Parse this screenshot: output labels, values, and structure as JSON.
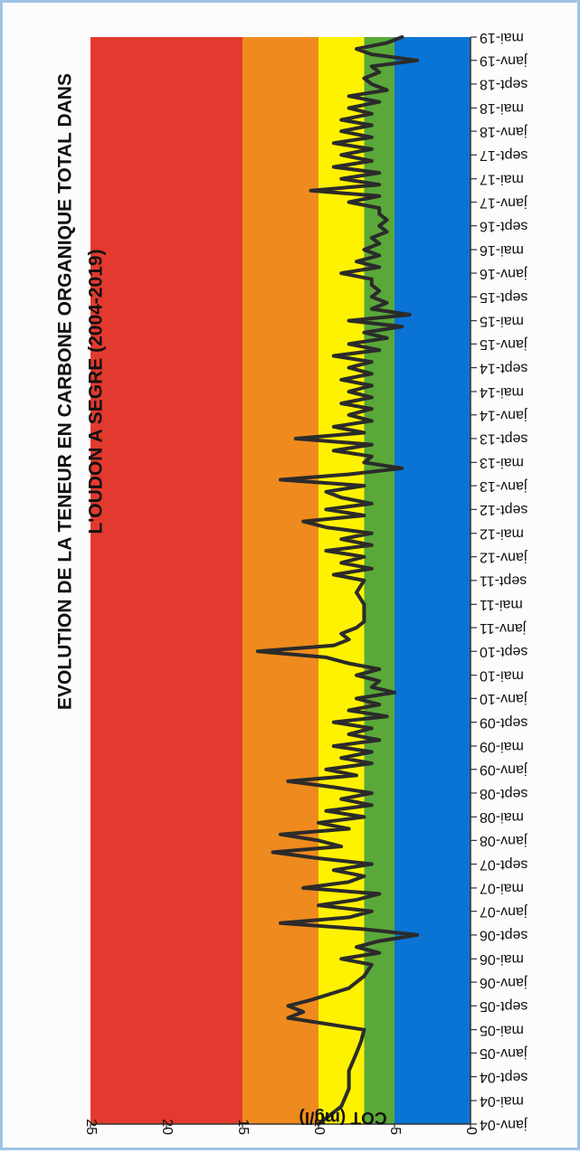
{
  "chart_data": {
    "type": "line",
    "title": "EVOLUTION DE LA TENEUR EN CARBONE ORGANIQUE TOTAL DANS L'OUDON A SEGRE (2004-2019)",
    "title_lines": [
      "EVOLUTION DE LA TENEUR EN CARBONE ORGANIQUE TOTAL DANS",
      "L'OUDON A SEGRE (2004-2019)"
    ],
    "xlabel": "",
    "ylabel": "COT (mg/l)",
    "ylim": [
      0,
      25
    ],
    "yticks": [
      0,
      5,
      10,
      15,
      20,
      25
    ],
    "orientation": "rotated-90-clockwise",
    "grid": false,
    "legend": "none",
    "xlim": [
      "2004-01-01",
      "2019-05-01"
    ],
    "xticks": [
      {
        "label": "janv-04",
        "date": "2004-01-01"
      },
      {
        "label": "mai-04",
        "date": "2004-05-01"
      },
      {
        "label": "sept-04",
        "date": "2004-09-01"
      },
      {
        "label": "janv-05",
        "date": "2005-01-01"
      },
      {
        "label": "mai-05",
        "date": "2005-05-01"
      },
      {
        "label": "sept-05",
        "date": "2005-09-01"
      },
      {
        "label": "janv-06",
        "date": "2006-01-01"
      },
      {
        "label": "mai-06",
        "date": "2006-05-01"
      },
      {
        "label": "sept-06",
        "date": "2006-09-01"
      },
      {
        "label": "janv-07",
        "date": "2007-01-01"
      },
      {
        "label": "mai-07",
        "date": "2007-05-01"
      },
      {
        "label": "sept-07",
        "date": "2007-09-01"
      },
      {
        "label": "janv-08",
        "date": "2008-01-01"
      },
      {
        "label": "mai-08",
        "date": "2008-05-01"
      },
      {
        "label": "sept-08",
        "date": "2008-09-01"
      },
      {
        "label": "janv-09",
        "date": "2009-01-01"
      },
      {
        "label": "mai-09",
        "date": "2009-05-01"
      },
      {
        "label": "sept-09",
        "date": "2009-09-01"
      },
      {
        "label": "janv-10",
        "date": "2010-01-01"
      },
      {
        "label": "mai-10",
        "date": "2010-05-01"
      },
      {
        "label": "sept-10",
        "date": "2010-09-01"
      },
      {
        "label": "janv-11",
        "date": "2011-01-01"
      },
      {
        "label": "mai-11",
        "date": "2011-05-01"
      },
      {
        "label": "sept-11",
        "date": "2011-09-01"
      },
      {
        "label": "janv-12",
        "date": "2012-01-01"
      },
      {
        "label": "mai-12",
        "date": "2012-05-01"
      },
      {
        "label": "sept-12",
        "date": "2012-09-01"
      },
      {
        "label": "janv-13",
        "date": "2013-01-01"
      },
      {
        "label": "mai-13",
        "date": "2013-05-01"
      },
      {
        "label": "sept-13",
        "date": "2013-09-01"
      },
      {
        "label": "janv-14",
        "date": "2014-01-01"
      },
      {
        "label": "mai-14",
        "date": "2014-05-01"
      },
      {
        "label": "sept-14",
        "date": "2014-09-01"
      },
      {
        "label": "janv-15",
        "date": "2015-01-01"
      },
      {
        "label": "mai-15",
        "date": "2015-05-01"
      },
      {
        "label": "sept-15",
        "date": "2015-09-01"
      },
      {
        "label": "janv-16",
        "date": "2016-01-01"
      },
      {
        "label": "mai-16",
        "date": "2016-05-01"
      },
      {
        "label": "sept-16",
        "date": "2016-09-01"
      },
      {
        "label": "janv-17",
        "date": "2017-01-01"
      },
      {
        "label": "mai-17",
        "date": "2017-05-01"
      },
      {
        "label": "sept-17",
        "date": "2017-09-01"
      },
      {
        "label": "janv-18",
        "date": "2018-01-01"
      },
      {
        "label": "mai-18",
        "date": "2018-05-01"
      },
      {
        "label": "sept-18",
        "date": "2018-09-01"
      },
      {
        "label": "janv-19",
        "date": "2019-01-01"
      },
      {
        "label": "mai-19",
        "date": "2019-05-01"
      }
    ],
    "bands": [
      {
        "from": 0,
        "to": 5,
        "color": "#0a74d4"
      },
      {
        "from": 5,
        "to": 7,
        "color": "#5aa839"
      },
      {
        "from": 7,
        "to": 10,
        "color": "#fff200"
      },
      {
        "from": 10,
        "to": 15,
        "color": "#ef8a1e"
      },
      {
        "from": 15,
        "to": 25,
        "color": "#e23a2e"
      }
    ],
    "line_color": "#2b2b2b",
    "series": [
      {
        "points": [
          [
            "2004-01-01",
            10.0
          ],
          [
            "2004-04-01",
            8.5
          ],
          [
            "2004-07-01",
            8.0
          ],
          [
            "2004-10-01",
            8.0
          ],
          [
            "2005-01-01",
            7.5
          ],
          [
            "2005-03-01",
            7.2
          ],
          [
            "2005-05-01",
            7.0
          ],
          [
            "2005-07-01",
            12.0
          ],
          [
            "2005-08-01",
            11.0
          ],
          [
            "2005-09-01",
            12.0
          ],
          [
            "2005-10-01",
            10.5
          ],
          [
            "2005-12-01",
            8.0
          ],
          [
            "2006-02-01",
            7.0
          ],
          [
            "2006-04-01",
            6.5
          ],
          [
            "2006-05-01",
            8.5
          ],
          [
            "2006-06-01",
            6.0
          ],
          [
            "2006-07-01",
            7.5
          ],
          [
            "2006-08-01",
            6.0
          ],
          [
            "2006-09-01",
            3.5
          ],
          [
            "2006-10-01",
            7.0
          ],
          [
            "2006-11-01",
            12.5
          ],
          [
            "2006-12-01",
            8.0
          ],
          [
            "2007-01-01",
            6.5
          ],
          [
            "2007-02-01",
            10.0
          ],
          [
            "2007-03-01",
            7.5
          ],
          [
            "2007-04-01",
            6.0
          ],
          [
            "2007-05-01",
            11.0
          ],
          [
            "2007-06-01",
            8.0
          ],
          [
            "2007-07-01",
            7.0
          ],
          [
            "2007-08-01",
            9.0
          ],
          [
            "2007-09-01",
            6.5
          ],
          [
            "2007-10-01",
            10.0
          ],
          [
            "2007-11-01",
            13.0
          ],
          [
            "2007-12-01",
            8.5
          ],
          [
            "2008-01-01",
            10.0
          ],
          [
            "2008-02-01",
            12.5
          ],
          [
            "2008-03-01",
            8.0
          ],
          [
            "2008-04-01",
            10.0
          ],
          [
            "2008-05-01",
            7.0
          ],
          [
            "2008-06-01",
            9.5
          ],
          [
            "2008-07-01",
            6.5
          ],
          [
            "2008-08-01",
            8.5
          ],
          [
            "2008-09-01",
            6.5
          ],
          [
            "2008-10-01",
            9.0
          ],
          [
            "2008-11-01",
            12.0
          ],
          [
            "2008-12-01",
            7.5
          ],
          [
            "2009-01-01",
            9.5
          ],
          [
            "2009-02-01",
            6.5
          ],
          [
            "2009-03-01",
            8.5
          ],
          [
            "2009-04-01",
            6.5
          ],
          [
            "2009-05-01",
            9.0
          ],
          [
            "2009-06-01",
            6.0
          ],
          [
            "2009-07-01",
            8.0
          ],
          [
            "2009-08-01",
            6.5
          ],
          [
            "2009-09-01",
            9.0
          ],
          [
            "2009-10-01",
            5.5
          ],
          [
            "2009-11-01",
            8.0
          ],
          [
            "2009-12-01",
            6.0
          ],
          [
            "2010-01-01",
            7.5
          ],
          [
            "2010-02-01",
            5.0
          ],
          [
            "2010-03-01",
            6.5
          ],
          [
            "2010-04-01",
            6.0
          ],
          [
            "2010-05-01",
            7.5
          ],
          [
            "2010-06-01",
            6.0
          ],
          [
            "2010-07-01",
            8.0
          ],
          [
            "2010-08-01",
            9.5
          ],
          [
            "2010-09-01",
            14.0
          ],
          [
            "2010-10-01",
            9.0
          ],
          [
            "2010-11-01",
            8.0
          ],
          [
            "2010-12-01",
            8.5
          ],
          [
            "2011-01-01",
            7.5
          ],
          [
            "2011-02-01",
            7.0
          ],
          [
            "2011-03-01",
            7.0
          ],
          [
            "2011-05-01",
            7.0
          ],
          [
            "2011-07-01",
            7.5
          ],
          [
            "2011-09-01",
            7.0
          ],
          [
            "2011-10-01",
            9.0
          ],
          [
            "2011-11-01",
            6.5
          ],
          [
            "2011-12-01",
            8.5
          ],
          [
            "2012-01-01",
            7.0
          ],
          [
            "2012-02-01",
            9.5
          ],
          [
            "2012-03-01",
            6.5
          ],
          [
            "2012-04-01",
            8.5
          ],
          [
            "2012-05-01",
            6.5
          ],
          [
            "2012-06-01",
            9.5
          ],
          [
            "2012-07-01",
            11.0
          ],
          [
            "2012-08-01",
            7.0
          ],
          [
            "2012-09-01",
            9.5
          ],
          [
            "2012-10-01",
            6.5
          ],
          [
            "2012-11-01",
            8.5
          ],
          [
            "2012-12-01",
            9.5
          ],
          [
            "2013-01-01",
            7.0
          ],
          [
            "2013-02-01",
            12.5
          ],
          [
            "2013-03-01",
            8.0
          ],
          [
            "2013-04-01",
            4.5
          ],
          [
            "2013-05-01",
            7.0
          ],
          [
            "2013-06-01",
            6.5
          ],
          [
            "2013-07-01",
            9.0
          ],
          [
            "2013-08-01",
            6.5
          ],
          [
            "2013-09-01",
            11.5
          ],
          [
            "2013-10-01",
            7.0
          ],
          [
            "2013-11-01",
            9.0
          ],
          [
            "2013-12-01",
            6.5
          ],
          [
            "2014-01-01",
            8.0
          ],
          [
            "2014-02-01",
            6.5
          ],
          [
            "2014-03-01",
            8.5
          ],
          [
            "2014-04-01",
            6.5
          ],
          [
            "2014-05-01",
            8.0
          ],
          [
            "2014-06-01",
            6.5
          ],
          [
            "2014-07-01",
            8.5
          ],
          [
            "2014-08-01",
            6.5
          ],
          [
            "2014-09-01",
            8.0
          ],
          [
            "2014-10-01",
            6.5
          ],
          [
            "2014-11-01",
            9.0
          ],
          [
            "2014-12-01",
            6.0
          ],
          [
            "2015-01-01",
            8.0
          ],
          [
            "2015-02-01",
            5.5
          ],
          [
            "2015-03-01",
            7.0
          ],
          [
            "2015-04-01",
            4.5
          ],
          [
            "2015-05-01",
            8.0
          ],
          [
            "2015-06-01",
            4.0
          ],
          [
            "2015-07-01",
            6.5
          ],
          [
            "2015-08-01",
            5.5
          ],
          [
            "2015-09-01",
            6.5
          ],
          [
            "2015-10-01",
            6.0
          ],
          [
            "2015-11-01",
            6.5
          ],
          [
            "2015-12-01",
            6.5
          ],
          [
            "2016-01-01",
            8.5
          ],
          [
            "2016-02-01",
            6.0
          ],
          [
            "2016-03-01",
            7.5
          ],
          [
            "2016-04-01",
            6.0
          ],
          [
            "2016-05-01",
            7.0
          ],
          [
            "2016-06-01",
            6.0
          ],
          [
            "2016-07-01",
            6.5
          ],
          [
            "2016-08-01",
            5.5
          ],
          [
            "2016-09-01",
            6.0
          ],
          [
            "2016-10-01",
            5.5
          ],
          [
            "2016-11-01",
            6.0
          ],
          [
            "2016-12-01",
            6.0
          ],
          [
            "2017-01-01",
            8.0
          ],
          [
            "2017-02-01",
            6.0
          ],
          [
            "2017-03-01",
            10.5
          ],
          [
            "2017-04-01",
            6.0
          ],
          [
            "2017-05-01",
            8.5
          ],
          [
            "2017-06-01",
            6.0
          ],
          [
            "2017-07-01",
            9.0
          ],
          [
            "2017-08-01",
            6.5
          ],
          [
            "2017-09-01",
            8.5
          ],
          [
            "2017-10-01",
            6.5
          ],
          [
            "2017-11-01",
            9.0
          ],
          [
            "2017-12-01",
            6.5
          ],
          [
            "2018-01-01",
            8.5
          ],
          [
            "2018-02-01",
            6.5
          ],
          [
            "2018-03-01",
            8.5
          ],
          [
            "2018-04-01",
            6.5
          ],
          [
            "2018-05-01",
            8.0
          ],
          [
            "2018-06-01",
            6.0
          ],
          [
            "2018-07-01",
            8.0
          ],
          [
            "2018-08-01",
            5.5
          ],
          [
            "2018-09-01",
            6.5
          ],
          [
            "2018-10-01",
            7.0
          ],
          [
            "2018-11-01",
            6.0
          ],
          [
            "2018-12-01",
            6.5
          ],
          [
            "2019-01-01",
            3.5
          ],
          [
            "2019-02-01",
            6.5
          ],
          [
            "2019-03-01",
            7.5
          ],
          [
            "2019-04-01",
            5.5
          ],
          [
            "2019-05-01",
            4.5
          ]
        ]
      }
    ]
  }
}
